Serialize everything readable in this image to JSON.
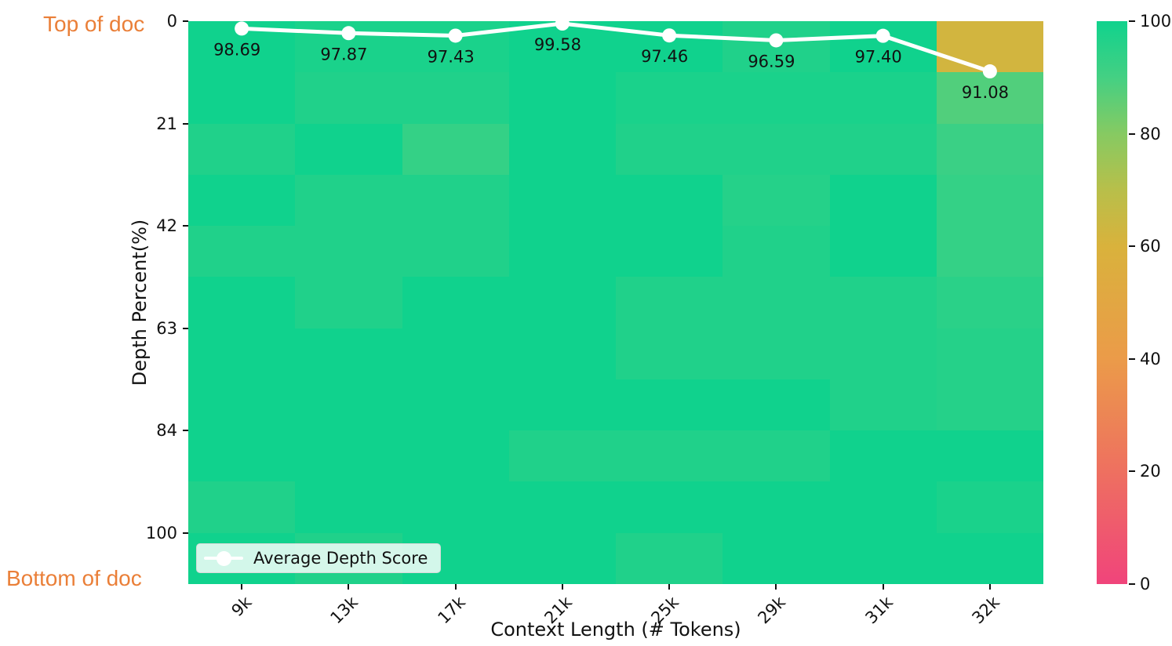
{
  "annotations": {
    "top_left": "Top of doc",
    "bottom_left": "Bottom of doc",
    "color": "#EA7F38"
  },
  "axes": {
    "x": {
      "title": "Context Length (# Tokens)"
    },
    "y": {
      "title": "Depth Percent(%)"
    }
  },
  "legend": {
    "label": "Average Depth Score"
  },
  "colorbar": {
    "min": 0,
    "max": 100,
    "ticks": [
      0,
      20,
      40,
      60,
      80,
      100
    ]
  },
  "chart_data": {
    "type": "heatmap",
    "title": "",
    "xlabel": "Context Length (# Tokens)",
    "ylabel": "Depth Percent(%)",
    "x_categories": [
      "9k",
      "13k",
      "17k",
      "21k",
      "25k",
      "29k",
      "31k",
      "32k"
    ],
    "y_depth_percent_rows": [
      0,
      10,
      21,
      31,
      42,
      52,
      63,
      73,
      84,
      94,
      100
    ],
    "y_ticks_shown": [
      {
        "label": "0",
        "row_boundary": 0
      },
      {
        "label": "21",
        "row_boundary": 2
      },
      {
        "label": "42",
        "row_boundary": 4
      },
      {
        "label": "63",
        "row_boundary": 6
      },
      {
        "label": "84",
        "row_boundary": 8
      },
      {
        "label": "100",
        "row_boundary": 10
      }
    ],
    "grid": false,
    "legend_position": "lower left",
    "color_scale_stops": [
      [
        0,
        "#f0447b"
      ],
      [
        20,
        "#ee7060"
      ],
      [
        40,
        "#eb9b49"
      ],
      [
        60,
        "#d9b23c"
      ],
      [
        70,
        "#b8bf4a"
      ],
      [
        80,
        "#86ca62"
      ],
      [
        90,
        "#44d083"
      ],
      [
        100,
        "#10d28d"
      ]
    ],
    "cell_scores_estimated": [
      [
        100,
        98,
        98,
        100,
        100,
        97,
        100,
        62
      ],
      [
        100,
        97,
        97,
        100,
        98,
        98,
        98,
        88
      ],
      [
        97,
        100,
        93,
        100,
        97,
        97,
        97,
        92
      ],
      [
        100,
        97,
        97,
        100,
        100,
        96,
        100,
        93
      ],
      [
        97,
        97,
        97,
        100,
        100,
        97,
        100,
        93
      ],
      [
        100,
        97,
        100,
        100,
        97,
        97,
        97,
        95
      ],
      [
        100,
        100,
        100,
        100,
        97,
        97,
        97,
        96
      ],
      [
        100,
        100,
        100,
        100,
        100,
        100,
        97,
        96
      ],
      [
        100,
        100,
        100,
        97,
        97,
        97,
        100,
        100
      ],
      [
        97,
        100,
        100,
        100,
        100,
        100,
        100,
        98
      ],
      [
        100,
        97,
        100,
        100,
        97,
        100,
        100,
        100
      ]
    ],
    "line_overlay": {
      "name": "Average Depth Score",
      "color": "#ffffff",
      "values": [
        98.69,
        97.87,
        97.43,
        99.58,
        97.46,
        96.59,
        97.4,
        91.08
      ],
      "labels": [
        "98.69",
        "97.87",
        "97.43",
        "99.58",
        "97.46",
        "96.59",
        "97.40",
        "91.08"
      ]
    }
  }
}
